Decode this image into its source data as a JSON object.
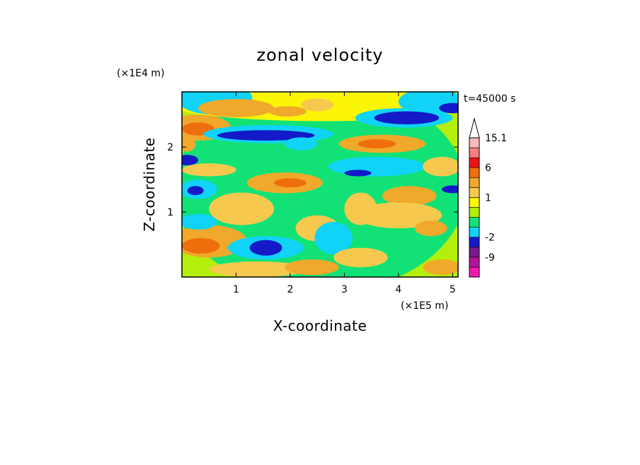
{
  "chart_data": {
    "type": "heatmap",
    "title": "zonal velocity",
    "time_label": "t=45000 s",
    "xlabel": "X-coordinate",
    "ylabel": "Z-coordinate",
    "x_unit": "(×1E5 m)",
    "y_unit": "(×1E4 m)",
    "xlim": [
      0,
      5.1
    ],
    "ylim": [
      0,
      2.85
    ],
    "x_ticks": [
      1,
      2,
      3,
      4,
      5
    ],
    "y_ticks": [
      1,
      2
    ],
    "colorbar": {
      "extend": "max",
      "labels": [
        {
          "level": 15.1,
          "text": "15.1"
        },
        {
          "level": 6,
          "text": "6"
        },
        {
          "level": 1,
          "text": "1"
        },
        {
          "level": -2,
          "text": "-2"
        },
        {
          "level": -9,
          "text": "-9"
        }
      ],
      "bands": [
        {
          "color": "#f11ab4",
          "lo": -16,
          "hi": -12
        },
        {
          "color": "#b3169e",
          "lo": -12,
          "hi": -9
        },
        {
          "color": "#7a1a8c",
          "lo": -9,
          "hi": -6
        },
        {
          "color": "#141ac7",
          "lo": -6,
          "hi": -2
        },
        {
          "color": "#10d3f7",
          "lo": -2,
          "hi": -1
        },
        {
          "color": "#12e276",
          "lo": -1,
          "hi": 0
        },
        {
          "color": "#b4ef0c",
          "lo": 0,
          "hi": 0.5
        },
        {
          "color": "#fbf605",
          "lo": 0.5,
          "hi": 1
        },
        {
          "color": "#f6c94e",
          "lo": 1,
          "hi": 2
        },
        {
          "color": "#f0a92a",
          "lo": 2,
          "hi": 3
        },
        {
          "color": "#ef6e0c",
          "lo": 3,
          "hi": 6
        },
        {
          "color": "#e81515",
          "lo": 6,
          "hi": 9
        },
        {
          "color": "#f37f7f",
          "lo": 9,
          "hi": 12
        },
        {
          "color": "#f7baba",
          "lo": 12,
          "hi": 15.1
        }
      ],
      "extend_color": "#ffffff"
    },
    "field_regions": [
      {
        "fill": "#12e276",
        "x": 2.55,
        "y": 1.35,
        "rx": 2.7,
        "ry": 1.6
      },
      {
        "fill": "#fbf605",
        "x": 2.6,
        "y": 2.7,
        "rx": 3.0,
        "ry": 0.3
      },
      {
        "fill": "#10d3f7",
        "x": 0.6,
        "y": 2.75,
        "rx": 0.7,
        "ry": 0.25
      },
      {
        "fill": "#10d3f7",
        "x": 4.6,
        "y": 2.7,
        "rx": 0.6,
        "ry": 0.2
      },
      {
        "fill": "#f0a92a",
        "x": 0.3,
        "y": 2.3,
        "rx": 0.6,
        "ry": 0.2
      },
      {
        "fill": "#ef6e0c",
        "x": 0.3,
        "y": 2.28,
        "rx": 0.3,
        "ry": 0.1
      },
      {
        "fill": "#10d3f7",
        "x": 1.6,
        "y": 2.2,
        "rx": 1.2,
        "ry": 0.14
      },
      {
        "fill": "#141ac7",
        "x": 1.55,
        "y": 2.18,
        "rx": 0.9,
        "ry": 0.08
      },
      {
        "fill": "#f0a92a",
        "x": 1.0,
        "y": 2.6,
        "rx": 0.7,
        "ry": 0.14
      },
      {
        "fill": "#f0a92a",
        "x": 1.95,
        "y": 2.55,
        "rx": 0.35,
        "ry": 0.08
      },
      {
        "fill": "#f6c94e",
        "x": 2.5,
        "y": 2.65,
        "rx": 0.3,
        "ry": 0.1
      },
      {
        "fill": "#10d3f7",
        "x": 4.1,
        "y": 2.45,
        "rx": 0.9,
        "ry": 0.15
      },
      {
        "fill": "#141ac7",
        "x": 4.15,
        "y": 2.45,
        "rx": 0.6,
        "ry": 0.1
      },
      {
        "fill": "#141ac7",
        "x": 5.0,
        "y": 2.6,
        "rx": 0.25,
        "ry": 0.08
      },
      {
        "fill": "#f0a92a",
        "x": 3.7,
        "y": 2.05,
        "rx": 0.8,
        "ry": 0.14
      },
      {
        "fill": "#ef6e0c",
        "x": 3.6,
        "y": 2.05,
        "rx": 0.35,
        "ry": 0.07
      },
      {
        "fill": "#141ac7",
        "x": 0.1,
        "y": 1.8,
        "rx": 0.2,
        "ry": 0.08
      },
      {
        "fill": "#f6c94e",
        "x": 0.5,
        "y": 1.65,
        "rx": 0.5,
        "ry": 0.1
      },
      {
        "fill": "#10d3f7",
        "x": 0.3,
        "y": 1.35,
        "rx": 0.35,
        "ry": 0.15
      },
      {
        "fill": "#141ac7",
        "x": 0.25,
        "y": 1.33,
        "rx": 0.15,
        "ry": 0.07
      },
      {
        "fill": "#f0a92a",
        "x": 1.9,
        "y": 1.45,
        "rx": 0.7,
        "ry": 0.16
      },
      {
        "fill": "#ef6e0c",
        "x": 2.0,
        "y": 1.45,
        "rx": 0.3,
        "ry": 0.07
      },
      {
        "fill": "#10d3f7",
        "x": 3.6,
        "y": 1.7,
        "rx": 0.9,
        "ry": 0.15
      },
      {
        "fill": "#141ac7",
        "x": 3.25,
        "y": 1.6,
        "rx": 0.25,
        "ry": 0.05
      },
      {
        "fill": "#141ac7",
        "x": 5.0,
        "y": 1.35,
        "rx": 0.2,
        "ry": 0.06
      },
      {
        "fill": "#f0a92a",
        "x": 4.2,
        "y": 1.25,
        "rx": 0.5,
        "ry": 0.15
      },
      {
        "fill": "#f6c94e",
        "x": 4.0,
        "y": 0.95,
        "rx": 0.8,
        "ry": 0.2
      },
      {
        "fill": "#f0a92a",
        "x": 4.6,
        "y": 0.75,
        "rx": 0.3,
        "ry": 0.12
      },
      {
        "fill": "#f0a92a",
        "x": 0.5,
        "y": 0.55,
        "rx": 0.7,
        "ry": 0.25
      },
      {
        "fill": "#ef6e0c",
        "x": 0.35,
        "y": 0.48,
        "rx": 0.35,
        "ry": 0.12
      },
      {
        "fill": "#f6c94e",
        "x": 1.1,
        "y": 1.05,
        "rx": 0.6,
        "ry": 0.25
      },
      {
        "fill": "#10d3f7",
        "x": 1.55,
        "y": 0.45,
        "rx": 0.7,
        "ry": 0.18
      },
      {
        "fill": "#141ac7",
        "x": 1.55,
        "y": 0.45,
        "rx": 0.3,
        "ry": 0.12
      },
      {
        "fill": "#f6c94e",
        "x": 2.5,
        "y": 0.75,
        "rx": 0.4,
        "ry": 0.2
      },
      {
        "fill": "#10d3f7",
        "x": 2.8,
        "y": 0.6,
        "rx": 0.35,
        "ry": 0.25
      },
      {
        "fill": "#f6c94e",
        "x": 3.3,
        "y": 0.3,
        "rx": 0.5,
        "ry": 0.15
      },
      {
        "fill": "#f6c94e",
        "x": 1.4,
        "y": 0.12,
        "rx": 0.9,
        "ry": 0.12
      },
      {
        "fill": "#f0a92a",
        "x": 2.4,
        "y": 0.15,
        "rx": 0.5,
        "ry": 0.12
      },
      {
        "fill": "#10d3f7",
        "x": 0.3,
        "y": 0.85,
        "rx": 0.35,
        "ry": 0.12
      },
      {
        "fill": "#10d3f7",
        "x": 2.2,
        "y": 2.05,
        "rx": 0.3,
        "ry": 0.1
      },
      {
        "fill": "#f0a92a",
        "x": 0.1,
        "y": 2.05,
        "rx": 0.15,
        "ry": 0.12
      },
      {
        "fill": "#f6c94e",
        "x": 3.3,
        "y": 1.05,
        "rx": 0.3,
        "ry": 0.25
      },
      {
        "fill": "#f0a92a",
        "x": 4.8,
        "y": 0.15,
        "rx": 0.35,
        "ry": 0.12
      },
      {
        "fill": "#f6c94e",
        "x": 4.8,
        "y": 1.7,
        "rx": 0.35,
        "ry": 0.15
      }
    ]
  }
}
